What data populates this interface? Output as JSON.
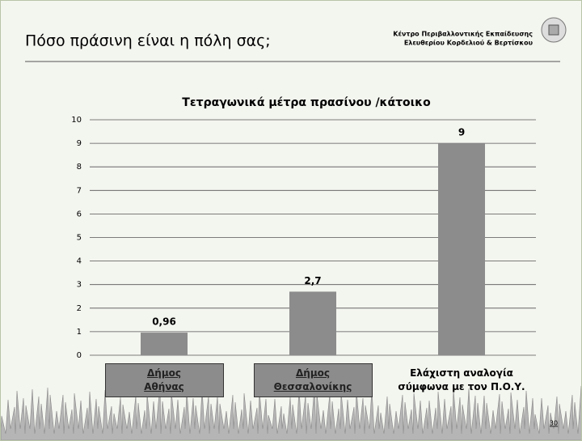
{
  "header": {
    "title": "Πόσο πράσινη είναι η πόλη σας;",
    "organization": [
      "Κέντρο Περιβαλλοντικής Εκπαίδευσης",
      "Ελευθερίου Κορδελιού & Βερτίσκου"
    ]
  },
  "chart_data": {
    "type": "bar",
    "title": "Τετραγωνικά μέτρα πρασίνου /κάτοικο",
    "categories": [
      "Δήμος Αθήνας",
      "Δήμος Θεσσαλονίκης",
      "Ελάχιστη αναλογία σύμφωνα με τον Π.Ο.Υ."
    ],
    "values": [
      0.96,
      2.7,
      9
    ],
    "value_labels": [
      "0,96",
      "2,7",
      "9"
    ],
    "color": "#8c8c8c",
    "ylim": [
      0,
      10
    ],
    "yticks": [
      0,
      1,
      2,
      3,
      4,
      5,
      6,
      7,
      8,
      9,
      10
    ],
    "grid": true
  },
  "page_number": "30"
}
